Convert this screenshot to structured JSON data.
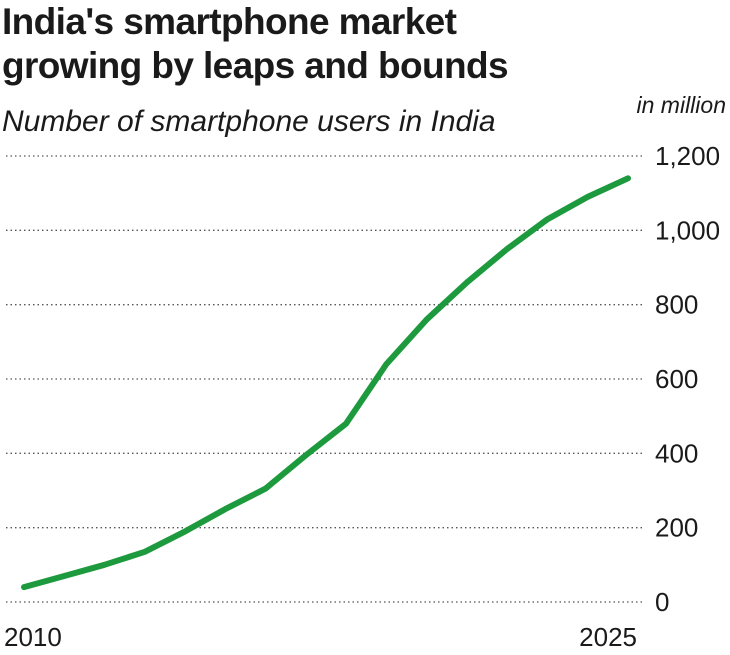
{
  "title_lines": [
    "India's smartphone market",
    "growing by leaps and bounds"
  ],
  "subtitle": "Number of smartphone users in India",
  "unit_label": "in million",
  "colors": {
    "line": "#1e9a3e",
    "grid": "#555555",
    "text": "#1a1a1a"
  },
  "chart_data": {
    "type": "line",
    "title": "India's smartphone market growing by leaps and bounds",
    "subtitle": "Number of smartphone users in India",
    "ylabel": "in million",
    "xlabel": "",
    "x": [
      2010,
      2011,
      2012,
      2013,
      2014,
      2015,
      2016,
      2017,
      2018,
      2019,
      2020,
      2021,
      2022,
      2023,
      2024,
      2025
    ],
    "series": [
      {
        "values": [
          40,
          70,
          100,
          135,
          190,
          250,
          305,
          395,
          480,
          640,
          760,
          860,
          950,
          1030,
          1090,
          1140
        ]
      }
    ],
    "x_tick_labels": [
      "2010",
      "2025"
    ],
    "y_ticks": [
      0,
      200,
      400,
      600,
      800,
      1000,
      1200
    ],
    "y_tick_labels": [
      "0",
      "200",
      "400",
      "600",
      "800",
      "1,000",
      "1,200"
    ],
    "xlim": [
      2010,
      2025
    ],
    "ylim": [
      0,
      1200
    ],
    "grid": "horizontal dotted",
    "y_axis_side": "right",
    "legend": "none"
  }
}
